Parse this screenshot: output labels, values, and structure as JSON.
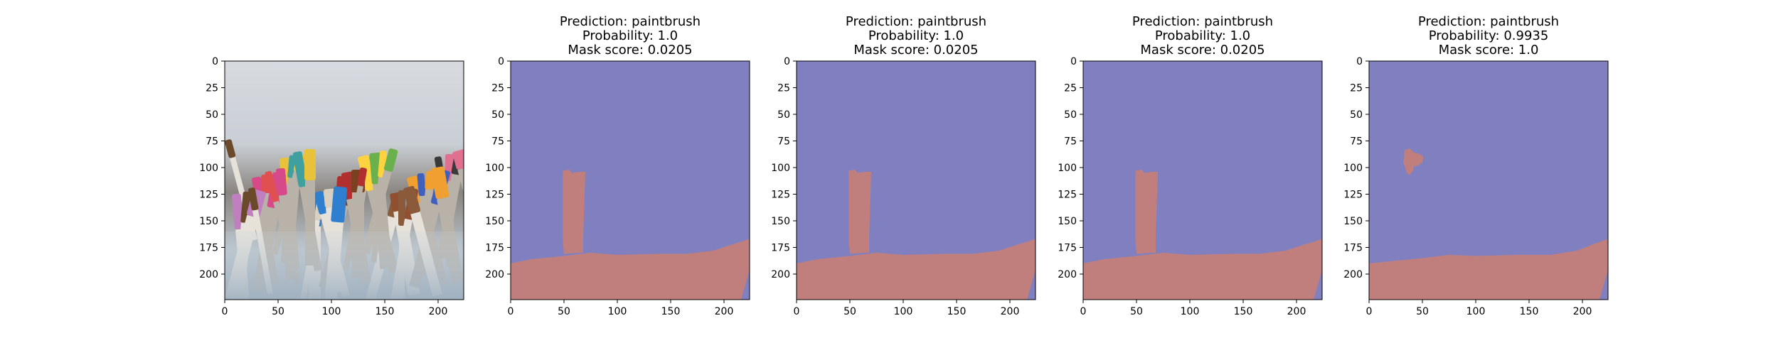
{
  "chart_data": [
    {
      "type": "image",
      "panel_kind": "photo",
      "title_lines": [],
      "image_description_name": "paintbrushes-photo",
      "x_ticks": [
        0,
        50,
        100,
        150,
        200
      ],
      "y_ticks": [
        0,
        25,
        50,
        75,
        100,
        125,
        150,
        175,
        200
      ],
      "xlim": [
        0,
        224
      ],
      "ylim": [
        224,
        0
      ]
    },
    {
      "type": "image",
      "panel_kind": "mask",
      "title_lines": [
        "Prediction: paintbrush",
        "Probability: 1.0",
        "Mask score: 0.0205"
      ],
      "prediction": "paintbrush",
      "probability": 1.0,
      "mask_score": 0.0205,
      "x_ticks": [
        0,
        50,
        100,
        150,
        200
      ],
      "y_ticks": [
        0,
        25,
        50,
        75,
        100,
        125,
        150,
        175,
        200
      ],
      "xlim": [
        0,
        224
      ],
      "ylim": [
        224,
        0
      ],
      "colors": {
        "background": "#8080c0",
        "mask": "#c07f7d"
      },
      "regions": [
        {
          "name": "brush-mask",
          "points": [
            [
              49,
              103
            ],
            [
              55,
              102
            ],
            [
              57,
              105
            ],
            [
              65,
              104
            ],
            [
              70,
              104
            ],
            [
              69,
              135
            ],
            [
              68,
              165
            ],
            [
              68,
              180
            ],
            [
              64,
              180
            ],
            [
              50,
              181
            ],
            [
              49,
              170
            ],
            [
              49,
              130
            ]
          ]
        },
        {
          "name": "floor-mask",
          "points": [
            [
              0,
              190
            ],
            [
              20,
              186
            ],
            [
              50,
              183
            ],
            [
              75,
              180
            ],
            [
              100,
              182
            ],
            [
              140,
              181
            ],
            [
              165,
              181
            ],
            [
              190,
              178
            ],
            [
              205,
              173
            ],
            [
              215,
              170
            ],
            [
              224,
              167
            ],
            [
              224,
              224
            ],
            [
              0,
              224
            ]
          ]
        }
      ],
      "cutouts": [
        {
          "name": "right-edge-cutout",
          "points": [
            [
              224,
              196
            ],
            [
              220,
              210
            ],
            [
              216,
              224
            ],
            [
              224,
              224
            ]
          ]
        }
      ]
    },
    {
      "type": "image",
      "panel_kind": "mask",
      "title_lines": [
        "Prediction: paintbrush",
        "Probability: 1.0",
        "Mask score: 0.0205"
      ],
      "prediction": "paintbrush",
      "probability": 1.0,
      "mask_score": 0.0205,
      "x_ticks": [
        0,
        50,
        100,
        150,
        200
      ],
      "y_ticks": [
        0,
        25,
        50,
        75,
        100,
        125,
        150,
        175,
        200
      ],
      "xlim": [
        0,
        224
      ],
      "ylim": [
        224,
        0
      ],
      "colors": {
        "background": "#8080c0",
        "mask": "#c07f7d"
      },
      "regions": [
        {
          "name": "brush-mask",
          "points": [
            [
              49,
              103
            ],
            [
              55,
              102
            ],
            [
              57,
              105
            ],
            [
              65,
              104
            ],
            [
              70,
              104
            ],
            [
              69,
              135
            ],
            [
              68,
              165
            ],
            [
              68,
              180
            ],
            [
              64,
              180
            ],
            [
              50,
              181
            ],
            [
              49,
              170
            ],
            [
              49,
              130
            ]
          ]
        },
        {
          "name": "floor-mask",
          "points": [
            [
              0,
              190
            ],
            [
              20,
              186
            ],
            [
              50,
              183
            ],
            [
              75,
              180
            ],
            [
              100,
              182
            ],
            [
              140,
              181
            ],
            [
              165,
              181
            ],
            [
              190,
              178
            ],
            [
              205,
              173
            ],
            [
              215,
              170
            ],
            [
              224,
              167
            ],
            [
              224,
              224
            ],
            [
              0,
              224
            ]
          ]
        }
      ],
      "cutouts": [
        {
          "name": "right-edge-cutout",
          "points": [
            [
              224,
              196
            ],
            [
              220,
              210
            ],
            [
              216,
              224
            ],
            [
              224,
              224
            ]
          ]
        }
      ]
    },
    {
      "type": "image",
      "panel_kind": "mask",
      "title_lines": [
        "Prediction: paintbrush",
        "Probability: 1.0",
        "Mask score: 0.0205"
      ],
      "prediction": "paintbrush",
      "probability": 1.0,
      "mask_score": 0.0205,
      "x_ticks": [
        0,
        50,
        100,
        150,
        200
      ],
      "y_ticks": [
        0,
        25,
        50,
        75,
        100,
        125,
        150,
        175,
        200
      ],
      "xlim": [
        0,
        224
      ],
      "ylim": [
        224,
        0
      ],
      "colors": {
        "background": "#8080c0",
        "mask": "#c07f7d"
      },
      "regions": [
        {
          "name": "brush-mask",
          "points": [
            [
              49,
              103
            ],
            [
              55,
              102
            ],
            [
              57,
              105
            ],
            [
              65,
              104
            ],
            [
              70,
              104
            ],
            [
              69,
              135
            ],
            [
              68,
              165
            ],
            [
              68,
              180
            ],
            [
              64,
              180
            ],
            [
              50,
              181
            ],
            [
              49,
              170
            ],
            [
              49,
              130
            ]
          ]
        },
        {
          "name": "floor-mask",
          "points": [
            [
              0,
              190
            ],
            [
              20,
              186
            ],
            [
              50,
              183
            ],
            [
              75,
              180
            ],
            [
              100,
              182
            ],
            [
              140,
              181
            ],
            [
              165,
              181
            ],
            [
              190,
              178
            ],
            [
              205,
              173
            ],
            [
              215,
              170
            ],
            [
              224,
              167
            ],
            [
              224,
              224
            ],
            [
              0,
              224
            ]
          ]
        }
      ],
      "cutouts": [
        {
          "name": "right-edge-cutout",
          "points": [
            [
              224,
              196
            ],
            [
              220,
              210
            ],
            [
              216,
              224
            ],
            [
              224,
              224
            ]
          ]
        }
      ]
    },
    {
      "type": "image",
      "panel_kind": "mask",
      "title_lines": [
        "Prediction: paintbrush",
        "Probability: 0.9935",
        "Mask score: 1.0"
      ],
      "prediction": "paintbrush",
      "probability": 0.9935,
      "mask_score": 1.0,
      "x_ticks": [
        0,
        50,
        100,
        150,
        200
      ],
      "y_ticks": [
        0,
        25,
        50,
        75,
        100,
        125,
        150,
        175,
        200
      ],
      "xlim": [
        0,
        224
      ],
      "ylim": [
        224,
        0
      ],
      "colors": {
        "background": "#8080c0",
        "mask": "#c07f7d"
      },
      "regions": [
        {
          "name": "blob-mask",
          "points": [
            [
              33,
              84
            ],
            [
              38,
              82
            ],
            [
              42,
              86
            ],
            [
              47,
              87
            ],
            [
              51,
              90
            ],
            [
              50,
              95
            ],
            [
              46,
              98
            ],
            [
              42,
              99
            ],
            [
              41,
              103
            ],
            [
              38,
              107
            ],
            [
              35,
              105
            ],
            [
              34,
              100
            ],
            [
              32,
              95
            ],
            [
              33,
              90
            ]
          ]
        },
        {
          "name": "floor-mask",
          "points": [
            [
              0,
              190
            ],
            [
              20,
              188
            ],
            [
              50,
              185
            ],
            [
              75,
              182
            ],
            [
              100,
              183
            ],
            [
              140,
              182
            ],
            [
              170,
              182
            ],
            [
              195,
              178
            ],
            [
              210,
              172
            ],
            [
              224,
              167
            ],
            [
              224,
              224
            ],
            [
              0,
              224
            ]
          ]
        }
      ],
      "cutouts": [
        {
          "name": "right-edge-cutout",
          "points": [
            [
              224,
              196
            ],
            [
              220,
              210
            ],
            [
              216,
              224
            ],
            [
              224,
              224
            ]
          ]
        }
      ]
    }
  ]
}
